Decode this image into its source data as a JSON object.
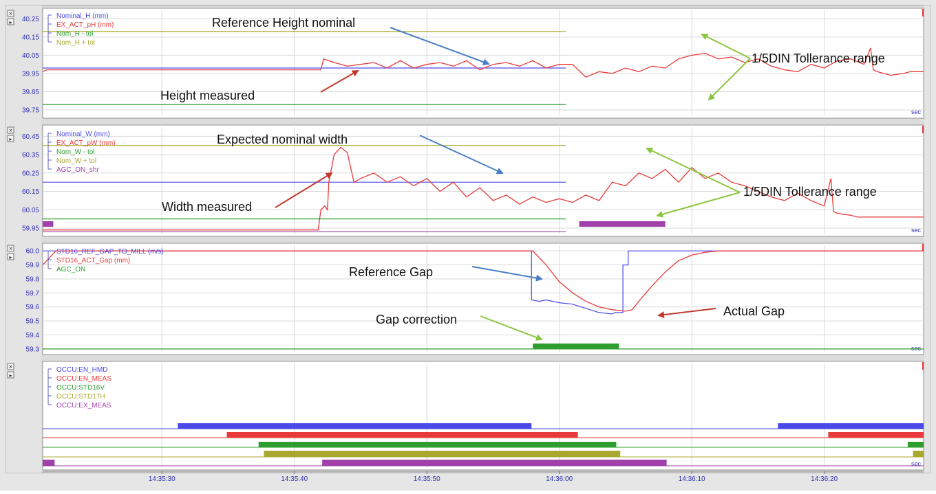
{
  "x_axis": {
    "start_seconds": 0,
    "ticks": [
      "14:35:30",
      "14:35:40",
      "14:35:50",
      "14:36:00",
      "14:36:10",
      "14:36:20"
    ]
  },
  "unit_label": "sec",
  "colors": {
    "blue": "#4a4ae8",
    "red": "#e83a3a",
    "green": "#2e9e2e",
    "olive": "#a8a830",
    "purple": "#a040a8",
    "tick_blue": "#3030b0",
    "arrow_blue": "#4a7ec8",
    "arrow_red": "#c0392b",
    "arrow_green": "#8cc63f"
  },
  "window_controls": {
    "close": "×",
    "pin": "▸"
  },
  "chart_data": [
    {
      "type": "line",
      "panel": "height",
      "legend": [
        "Nominal_H (mm)",
        "EX_ACT_pH (mm)",
        "Nom_H - tol",
        "Nom_H + tol"
      ],
      "y_ticks": [
        "40.25",
        "40.15",
        "40.05",
        "39.95",
        "39.85",
        "39.75"
      ],
      "ylim": [
        39.72,
        40.3
      ],
      "series": [
        {
          "name": "Nominal_H (mm)",
          "color": "blue",
          "values": [
            [
              -9,
              39.98
            ],
            [
              30.5,
              39.98
            ]
          ]
        },
        {
          "name": "Nom_H - tol",
          "color": "green",
          "values": [
            [
              -9,
              39.78
            ],
            [
              30.5,
              39.78
            ]
          ]
        },
        {
          "name": "Nom_H + tol",
          "color": "olive",
          "values": [
            [
              -9,
              40.18
            ],
            [
              30.5,
              40.18
            ]
          ]
        },
        {
          "name": "EX_ACT_pH (mm)",
          "color": "red",
          "values": [
            [
              -9,
              39.96
            ],
            [
              -8.7,
              39.97
            ],
            [
              12,
              39.97
            ],
            [
              12.2,
              40.03
            ],
            [
              13,
              40.01
            ],
            [
              14,
              39.99
            ],
            [
              15,
              40.0
            ],
            [
              16,
              40.01
            ],
            [
              17,
              39.98
            ],
            [
              18,
              40.02
            ],
            [
              19,
              39.98
            ],
            [
              20,
              40.0
            ],
            [
              21,
              40.01
            ],
            [
              22,
              39.99
            ],
            [
              23,
              40.02
            ],
            [
              24,
              39.97
            ],
            [
              25,
              40.0
            ],
            [
              26,
              40.01
            ],
            [
              27,
              39.99
            ],
            [
              28,
              40.02
            ],
            [
              29,
              39.98
            ],
            [
              30,
              40.0
            ],
            [
              31,
              40.0
            ],
            [
              32,
              39.93
            ],
            [
              33,
              39.96
            ],
            [
              34,
              39.95
            ],
            [
              35,
              39.98
            ],
            [
              36,
              39.96
            ],
            [
              37,
              39.99
            ],
            [
              38,
              39.98
            ],
            [
              39,
              40.03
            ],
            [
              40,
              40.05
            ],
            [
              41,
              40.06
            ],
            [
              42,
              40.03
            ],
            [
              43,
              40.04
            ],
            [
              44,
              40.01
            ],
            [
              45,
              40.03
            ],
            [
              46,
              39.99
            ],
            [
              47,
              39.97
            ],
            [
              48,
              39.96
            ],
            [
              49,
              40.0
            ],
            [
              50,
              39.98
            ],
            [
              51,
              40.02
            ],
            [
              52,
              40.03
            ],
            [
              53,
              40.0
            ],
            [
              53.5,
              40.09
            ],
            [
              53.7,
              39.97
            ],
            [
              54,
              39.96
            ],
            [
              55,
              39.94
            ],
            [
              56,
              39.95
            ],
            [
              56.5,
              39.96
            ],
            [
              57.5,
              39.96
            ]
          ]
        }
      ]
    },
    {
      "type": "line",
      "panel": "width",
      "legend": [
        "Nominal_W (mm)",
        "EX_ACT_pW (mm)",
        "Nom_W - tol",
        "Nom_W + tol",
        "AGC_ON_shr"
      ],
      "y_ticks": [
        "60.45",
        "60.35",
        "60.25",
        "60.15",
        "60.05",
        "59.95"
      ],
      "ylim": [
        59.92,
        60.5
      ],
      "series": [
        {
          "name": "Nominal_W (mm)",
          "color": "blue",
          "values": [
            [
              -9,
              60.2
            ],
            [
              30.5,
              60.2
            ]
          ]
        },
        {
          "name": "Nom_W - tol",
          "color": "green",
          "values": [
            [
              -9,
              60.0
            ],
            [
              30.5,
              60.0
            ]
          ]
        },
        {
          "name": "Nom_W + tol",
          "color": "olive",
          "values": [
            [
              -9,
              60.4
            ],
            [
              30.5,
              60.4
            ]
          ]
        },
        {
          "name": "EX_ACT_pW (mm)",
          "color": "red",
          "values": [
            [
              -9,
              59.94
            ],
            [
              11.8,
              59.94
            ],
            [
              12,
              60.05
            ],
            [
              12.3,
              60.07
            ],
            [
              12.5,
              60.05
            ],
            [
              12.6,
              60.2
            ],
            [
              13,
              60.35
            ],
            [
              13.5,
              60.39
            ],
            [
              14,
              60.36
            ],
            [
              14.5,
              60.2
            ],
            [
              15,
              60.22
            ],
            [
              16,
              60.25
            ],
            [
              17,
              60.2
            ],
            [
              18,
              60.23
            ],
            [
              19,
              60.18
            ],
            [
              20,
              60.22
            ],
            [
              21,
              60.15
            ],
            [
              22,
              60.2
            ],
            [
              23,
              60.12
            ],
            [
              24,
              60.17
            ],
            [
              25,
              60.1
            ],
            [
              26,
              60.13
            ],
            [
              27,
              60.08
            ],
            [
              28,
              60.12
            ],
            [
              29,
              60.09
            ],
            [
              30,
              60.11
            ],
            [
              31,
              60.09
            ],
            [
              32,
              60.13
            ],
            [
              33,
              60.1
            ],
            [
              34,
              60.2
            ],
            [
              35,
              60.18
            ],
            [
              36,
              60.25
            ],
            [
              37,
              60.22
            ],
            [
              38,
              60.27
            ],
            [
              39,
              60.2
            ],
            [
              40,
              60.28
            ],
            [
              41,
              60.22
            ],
            [
              42,
              60.25
            ],
            [
              43,
              60.2
            ],
            [
              44,
              60.18
            ],
            [
              45,
              60.15
            ],
            [
              46,
              60.12
            ],
            [
              47,
              60.1
            ],
            [
              48,
              60.14
            ],
            [
              49,
              60.1
            ],
            [
              50,
              60.07
            ],
            [
              50.5,
              60.22
            ],
            [
              50.7,
              60.04
            ],
            [
              51,
              60.03
            ],
            [
              52,
              60.02
            ],
            [
              52.5,
              60.01
            ],
            [
              57.5,
              60.01
            ]
          ]
        },
        {
          "name": "AGC_ON_shr",
          "color": "purple",
          "values": [
            [
              -9,
              59.93
            ],
            [
              30.5,
              59.93
            ]
          ]
        }
      ],
      "bars": [
        {
          "series": "AGC_ON_shr",
          "color": "purple",
          "from": -9,
          "to": -8.2
        },
        {
          "series": "AGC_ON_shr",
          "color": "purple",
          "from": 31.5,
          "to": 38
        }
      ]
    },
    {
      "type": "line",
      "panel": "gap",
      "legend": [
        "STD16_REF_GAP_TO_MILL (m/s)",
        "STD16_ACT_Gap (mm)",
        "AGC_ON"
      ],
      "y_ticks": [
        "60.0",
        "59.9",
        "59.8",
        "59.7",
        "59.6",
        "59.5",
        "59.4",
        "59.3"
      ],
      "ylim": [
        59.28,
        60.04
      ],
      "series": [
        {
          "name": "STD16_REF_GAP_TO_MILL (m/s)",
          "color": "blue",
          "values": [
            [
              -9,
              60.0
            ],
            [
              27.9,
              60.0
            ],
            [
              27.9,
              59.65
            ],
            [
              28.5,
              59.64
            ],
            [
              29,
              59.65
            ],
            [
              30,
              59.63
            ],
            [
              31,
              59.62
            ],
            [
              32,
              59.59
            ],
            [
              33,
              59.56
            ],
            [
              34,
              59.55
            ],
            [
              34.2,
              59.56
            ],
            [
              34.8,
              59.56
            ],
            [
              34.8,
              59.9
            ],
            [
              35.2,
              59.9
            ],
            [
              35.2,
              60.0
            ],
            [
              57.5,
              60.0
            ]
          ]
        },
        {
          "name": "STD16_ACT_Gap (mm)",
          "color": "red",
          "values": [
            [
              -9,
              59.9
            ],
            [
              -8.5,
              59.95
            ],
            [
              -8,
              60.0
            ],
            [
              28,
              60.0
            ],
            [
              29,
              59.9
            ],
            [
              30,
              59.78
            ],
            [
              31,
              59.7
            ],
            [
              32,
              59.64
            ],
            [
              33,
              59.6
            ],
            [
              34,
              59.58
            ],
            [
              35,
              59.57
            ],
            [
              35.5,
              59.58
            ],
            [
              36,
              59.64
            ],
            [
              37,
              59.75
            ],
            [
              38,
              59.85
            ],
            [
              39,
              59.93
            ],
            [
              40,
              59.97
            ],
            [
              41,
              59.99
            ],
            [
              42,
              60.0
            ],
            [
              57.5,
              60.0
            ]
          ]
        },
        {
          "name": "AGC_ON",
          "color": "green",
          "values": [
            [
              -9,
              59.3
            ],
            [
              57.5,
              59.3
            ]
          ]
        }
      ],
      "bars": [
        {
          "series": "AGC_ON",
          "color": "green",
          "from": 28,
          "to": 34.5
        }
      ]
    },
    {
      "type": "line",
      "panel": "occupancy",
      "legend": [
        "OCCU:EN_HMD",
        "OCCU:EN_MEAS",
        "OCCU:STD16V",
        "OCCU:STD17H",
        "OCCU:EX_MEAS"
      ],
      "series": [
        {
          "name": "OCCU:EN_HMD",
          "color": "blue",
          "segments": [
            [
              1.2,
              27.9
            ],
            [
              46.5,
              57.5
            ]
          ]
        },
        {
          "name": "OCCU:EN_MEAS",
          "color": "red",
          "segments": [
            [
              4.9,
              31.4
            ],
            [
              50.3,
              57.5
            ]
          ]
        },
        {
          "name": "OCCU:STD16V",
          "color": "green",
          "segments": [
            [
              7.3,
              34.3
            ],
            [
              56.3,
              57.5
            ]
          ]
        },
        {
          "name": "OCCU:STD17H",
          "color": "olive",
          "segments": [
            [
              7.7,
              34.6
            ],
            [
              56.7,
              57.5
            ]
          ]
        },
        {
          "name": "OCCU:EX_MEAS",
          "color": "purple",
          "segments": [
            [
              -9,
              -8.1
            ],
            [
              12.1,
              38.1
            ]
          ]
        }
      ]
    }
  ],
  "annotations": [
    {
      "text": "Reference Height nominal",
      "arrow": "blue"
    },
    {
      "text": "Height measured",
      "arrow": "red"
    },
    {
      "text": "1/5DIN Tollerance range",
      "arrow": "green"
    },
    {
      "text": "Expected nominal width",
      "arrow": "blue"
    },
    {
      "text": "Width measured",
      "arrow": "red"
    },
    {
      "text": "1/5DIN Tollerance range",
      "arrow": "green"
    },
    {
      "text": "Reference Gap",
      "arrow": "blue"
    },
    {
      "text": "Actual Gap",
      "arrow": "red"
    },
    {
      "text": "Gap correction",
      "arrow": "green"
    }
  ]
}
